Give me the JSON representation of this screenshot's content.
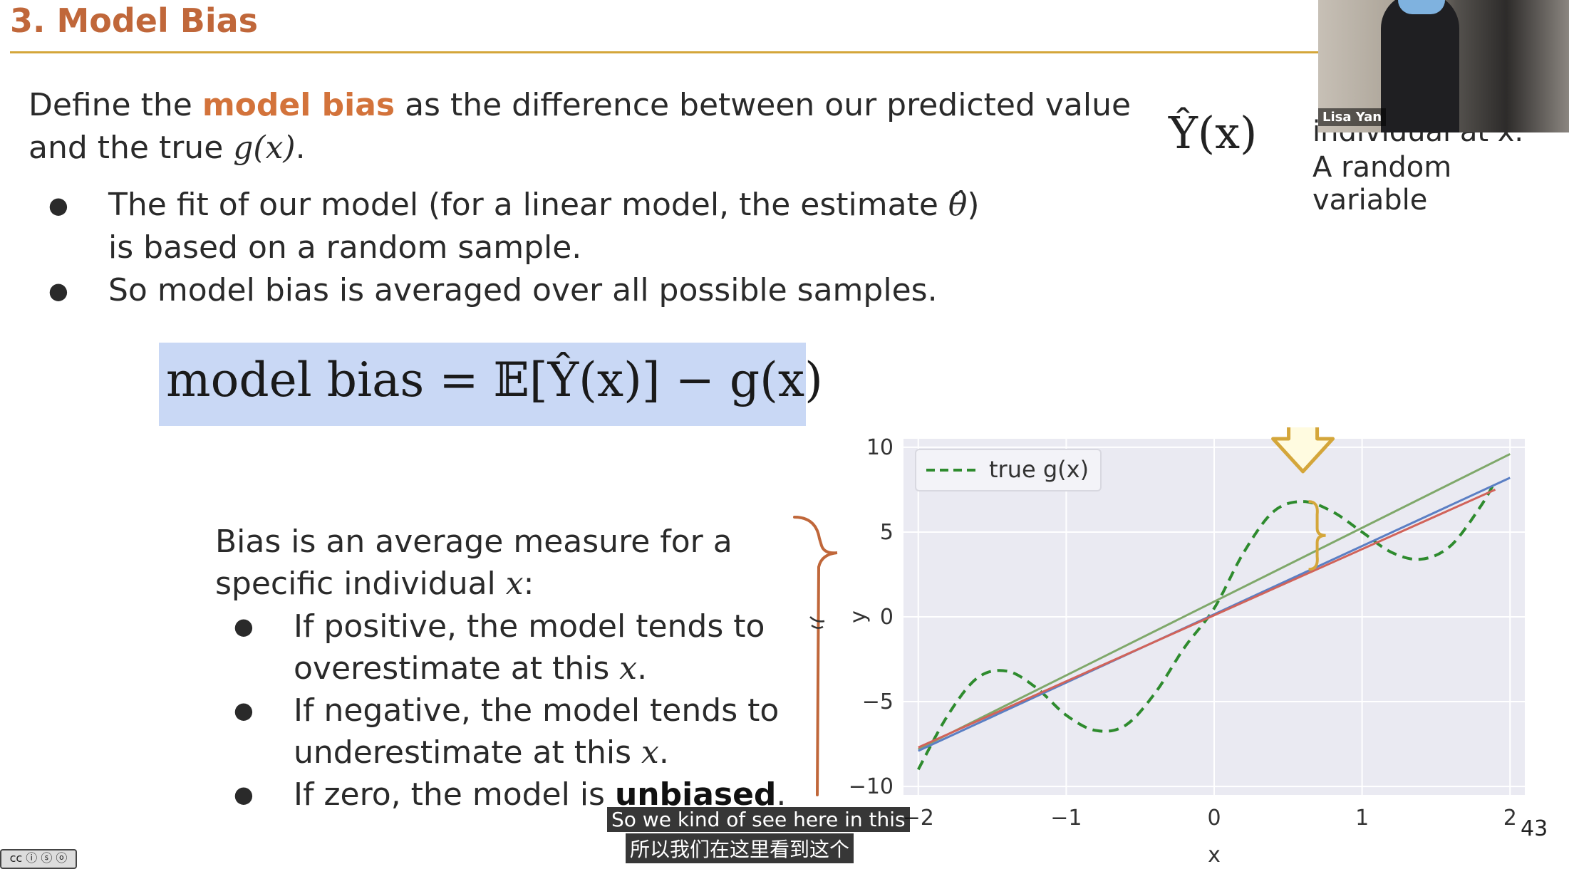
{
  "slide": {
    "title": "3. Model Bias",
    "page_number": "43",
    "intro": {
      "prefix": "Define the ",
      "highlight": "model bias",
      "middle": " as the difference between our predicted value",
      "line2_prefix": "and the true ",
      "line2_math": "g(x)",
      "line2_suffix": "."
    },
    "bullets": [
      {
        "line1": "The fit of our model (for a linear model, the estimate ",
        "math": "θ̂",
        "close": ")",
        "line2": "is based on a random sample."
      },
      {
        "line1": "So model bias is averaged over all possible samples."
      }
    ],
    "formula": "model bias = 𝔼[Ŷ(x)] − g(x)",
    "side": {
      "symbol": "Ŷ(x)",
      "line1": "individual at x.",
      "line2": "A random variable"
    },
    "lower": {
      "intro1": "Bias is an average measure for a",
      "intro2_prefix": "specific individual ",
      "intro2_math": "x",
      "intro2_suffix": ":",
      "items": [
        {
          "l1": "If positive, the model tends to",
          "l2_prefix": "overestimate at this ",
          "l2_math": "x",
          "l2_suffix": "."
        },
        {
          "l1": "If negative, the model tends to",
          "l2_prefix": "underestimate at this ",
          "l2_math": "x",
          "l2_suffix": "."
        },
        {
          "l1_prefix": "If zero, the model is ",
          "l1_bold": "unbiased",
          "l1_suffix": "."
        }
      ]
    }
  },
  "webcam": {
    "name": "Lisa Yan"
  },
  "captions": {
    "english": "So we kind of see here in this",
    "chinese": "所以我们在这里看到这个"
  },
  "license_badge": "cc ⓘ ⓢ ⓞ",
  "chart_data": {
    "type": "line",
    "xlabel": "x",
    "ylabel": "y",
    "xlim": [
      -2.1,
      2.1
    ],
    "ylim": [
      -10.5,
      10.5
    ],
    "xticks": [
      "−2",
      "−1",
      "0",
      "1",
      "2"
    ],
    "yticks": [
      "10",
      "5",
      "0",
      "−5",
      "−10"
    ],
    "grid": true,
    "legend": {
      "position": "top-left",
      "entries": [
        "true g(x)"
      ]
    },
    "series": [
      {
        "name": "true g(x)",
        "style": "dashed",
        "color": "#2e8b2e",
        "x": [
          -2.0,
          -1.8,
          -1.6,
          -1.4,
          -1.2,
          -1.0,
          -0.8,
          -0.6,
          -0.4,
          -0.2,
          0.0,
          0.2,
          0.4,
          0.6,
          0.8,
          1.0,
          1.2,
          1.4,
          1.6,
          1.8,
          1.9
        ],
        "y": [
          -9.0,
          -5.8,
          -3.6,
          -3.2,
          -4.2,
          -5.8,
          -6.7,
          -6.4,
          -4.5,
          -1.8,
          0.5,
          3.8,
          6.2,
          6.8,
          6.2,
          5.0,
          3.8,
          3.4,
          4.2,
          6.5,
          8.0
        ]
      },
      {
        "color": "#7fa86a",
        "x": [
          -2.0,
          2.0
        ],
        "y": [
          -7.8,
          9.6
        ]
      },
      {
        "color": "#5b7fc4",
        "x": [
          -2.0,
          2.0
        ],
        "y": [
          -7.9,
          8.2
        ]
      },
      {
        "color": "#d1635a",
        "x": [
          -2.0,
          1.9
        ],
        "y": [
          -7.7,
          7.5
        ]
      }
    ],
    "annotations": {
      "arrow_at_x": 0.6,
      "brace_between_y": [
        2.8,
        6.8
      ]
    }
  },
  "colors": {
    "accent": "#d3733b",
    "rule": "#d4a63a",
    "arrow": "#d4a63a",
    "brace": "#c0673a",
    "formula_bg": "#c9d8f5"
  }
}
